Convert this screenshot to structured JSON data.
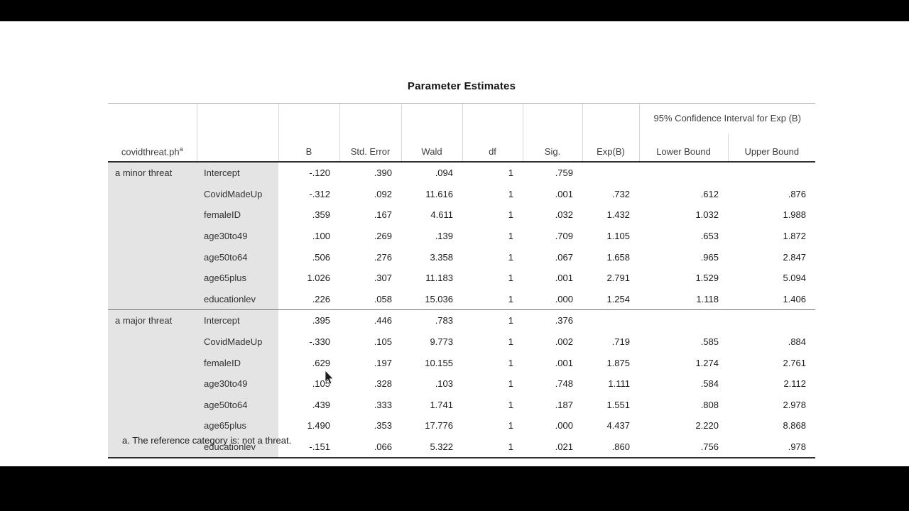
{
  "page": {
    "title": "Parameter Estimates",
    "footnote": "a. The reference category is: not a threat."
  },
  "style": {
    "row_label_bg": "#e4e4e4",
    "rule_dark": "#2e2e2e",
    "rule_light": "#b2b2b2"
  },
  "table": {
    "row_dim_label": "covidthreat.ph",
    "row_dim_superscript": "a",
    "spanner": "95% Confidence Interval for Exp (B)",
    "columns": [
      "B",
      "Std. Error",
      "Wald",
      "df",
      "Sig.",
      "Exp(B)",
      "Lower Bound",
      "Upper Bound"
    ],
    "sections": [
      {
        "label": "a minor threat",
        "rows": [
          {
            "predictor": "Intercept",
            "values": [
              "-.120",
              ".390",
              ".094",
              "1",
              ".759",
              "",
              "",
              ""
            ]
          },
          {
            "predictor": "CovidMadeUp",
            "values": [
              "-.312",
              ".092",
              "11.616",
              "1",
              ".001",
              ".732",
              ".612",
              ".876"
            ]
          },
          {
            "predictor": "femaleID",
            "values": [
              ".359",
              ".167",
              "4.611",
              "1",
              ".032",
              "1.432",
              "1.032",
              "1.988"
            ]
          },
          {
            "predictor": "age30to49",
            "values": [
              ".100",
              ".269",
              ".139",
              "1",
              ".709",
              "1.105",
              ".653",
              "1.872"
            ]
          },
          {
            "predictor": "age50to64",
            "values": [
              ".506",
              ".276",
              "3.358",
              "1",
              ".067",
              "1.658",
              ".965",
              "2.847"
            ]
          },
          {
            "predictor": "age65plus",
            "values": [
              "1.026",
              ".307",
              "11.183",
              "1",
              ".001",
              "2.791",
              "1.529",
              "5.094"
            ]
          },
          {
            "predictor": "educationlev",
            "values": [
              ".226",
              ".058",
              "15.036",
              "1",
              ".000",
              "1.254",
              "1.118",
              "1.406"
            ]
          }
        ]
      },
      {
        "label": "a major threat",
        "rows": [
          {
            "predictor": "Intercept",
            "values": [
              ".395",
              ".446",
              ".783",
              "1",
              ".376",
              "",
              "",
              ""
            ]
          },
          {
            "predictor": "CovidMadeUp",
            "values": [
              "-.330",
              ".105",
              "9.773",
              "1",
              ".002",
              ".719",
              ".585",
              ".884"
            ]
          },
          {
            "predictor": "femaleID",
            "values": [
              ".629",
              ".197",
              "10.155",
              "1",
              ".001",
              "1.875",
              "1.274",
              "2.761"
            ]
          },
          {
            "predictor": "age30to49",
            "values": [
              ".105",
              ".328",
              ".103",
              "1",
              ".748",
              "1.111",
              ".584",
              "2.112"
            ]
          },
          {
            "predictor": "age50to64",
            "values": [
              ".439",
              ".333",
              "1.741",
              "1",
              ".187",
              "1.551",
              ".808",
              "2.978"
            ]
          },
          {
            "predictor": "age65plus",
            "values": [
              "1.490",
              ".353",
              "17.776",
              "1",
              ".000",
              "4.437",
              "2.220",
              "8.868"
            ]
          },
          {
            "predictor": "educationlev",
            "values": [
              "-.151",
              ".066",
              "5.322",
              "1",
              ".021",
              ".860",
              ".756",
              ".978"
            ]
          }
        ]
      }
    ]
  }
}
